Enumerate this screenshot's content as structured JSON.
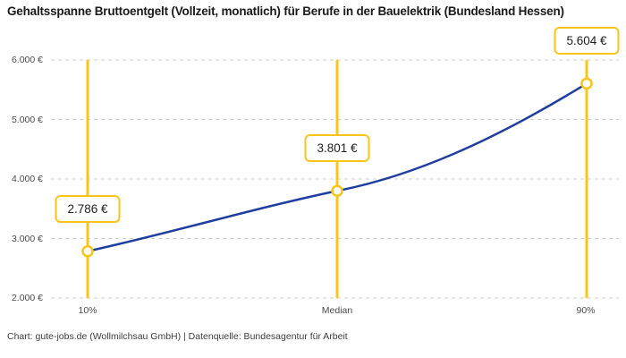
{
  "title": "Gehaltsspanne Bruttoentgelt (Vollzeit, monatlich) für Berufe in der Bauelektrik (Bundesland Hessen)",
  "footer": "Chart: gute-jobs.de (Wollmilchsau GmbH) | Datenquelle: Bundesagentur für Arbeit",
  "chart_data": {
    "type": "line",
    "title": "Gehaltsspanne Bruttoentgelt (Vollzeit, monatlich) für Berufe in der Bauelektrik (Bundesland Hessen)",
    "x_categories": [
      "10%",
      "Median",
      "90%"
    ],
    "points": [
      {
        "label": "10%",
        "value": 2786,
        "display": "2.786 €"
      },
      {
        "label": "Median",
        "value": 3801,
        "display": "3.801 €"
      },
      {
        "label": "90%",
        "value": 5604,
        "display": "5.604 €"
      }
    ],
    "y_ticks": [
      {
        "value": 2000,
        "label": "2.000 €"
      },
      {
        "value": 3000,
        "label": "3.000 €"
      },
      {
        "value": 4000,
        "label": "4.000 €"
      },
      {
        "value": 5000,
        "label": "5.000 €"
      },
      {
        "value": 6000,
        "label": "6.000 €"
      }
    ],
    "ylim": [
      2000,
      6000
    ],
    "unit": "€",
    "grid": "horizontal-dashed",
    "legend": "none",
    "colors": {
      "curve": "#1E3FA0",
      "accent": "#FCC419",
      "grid": "#cccccc",
      "marker_fill": "#ffffff",
      "title_text": "#1a1a1a",
      "tick_text": "#4b4b4b"
    }
  }
}
